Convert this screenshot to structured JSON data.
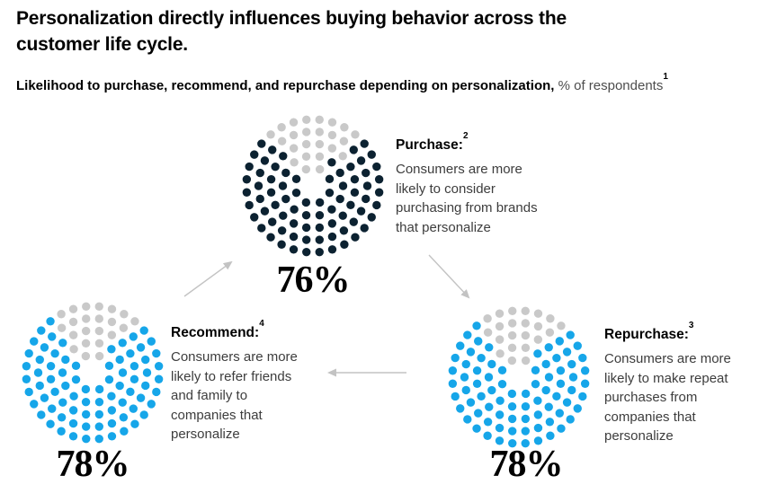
{
  "header": {
    "title": "Personalization directly influences buying behavior across the\ncustomer life cycle.",
    "subtitle_bold": "Likelihood to purchase, recommend, and repurchase depending on personalization,",
    "subtitle_light": " % of respondents",
    "subtitle_footnote_sup": "1"
  },
  "colors": {
    "title_text": "#000000",
    "body_text": "#3d3d3d",
    "subtitle_secondary": "#4d4d4d",
    "dark_navy_dot": "#0c2231",
    "blue_dot": "#16a6e9",
    "grey_remainder_dot": "#c9c9c9",
    "arrow": "#c3c3c3"
  },
  "chart_data": {
    "type": "dot-donut-cycle",
    "title": "Personalization directly influences buying behavior across the customer life cycle.",
    "subtitle": "Likelihood to purchase, recommend, and repurchase depending on personalization, % of respondents",
    "unit": "% of respondents",
    "total_dots_per_circle": 100,
    "rings_dot_counts": [
      8,
      14,
      20,
      26,
      32
    ],
    "nodes": [
      {
        "id": "purchase",
        "label": "Purchase:",
        "footnote_sup": "2",
        "value": 76,
        "value_label": "76%",
        "description": "Consumers are more\nlikely to consider\npurchasing from brands\nthat personalize",
        "dot_color": "#0c2231",
        "remainder_color": "#c9c9c9"
      },
      {
        "id": "recommend",
        "label": "Recommend:",
        "footnote_sup": "4",
        "value": 78,
        "value_label": "78%",
        "description": "Consumers are more\nlikely to refer friends\nand family to\ncompanies that\npersonalize",
        "dot_color": "#16a6e9",
        "remainder_color": "#c9c9c9"
      },
      {
        "id": "repurchase",
        "label": "Repurchase:",
        "footnote_sup": "3",
        "value": 78,
        "value_label": "78%",
        "description": "Consumers are more\nlikely to make repeat\npurchases from\ncompanies that\npersonalize",
        "dot_color": "#16a6e9",
        "remainder_color": "#c9c9c9"
      }
    ],
    "flows": [
      {
        "from": "recommend",
        "to": "purchase"
      },
      {
        "from": "purchase",
        "to": "repurchase"
      },
      {
        "from": "repurchase",
        "to": "recommend"
      }
    ]
  }
}
